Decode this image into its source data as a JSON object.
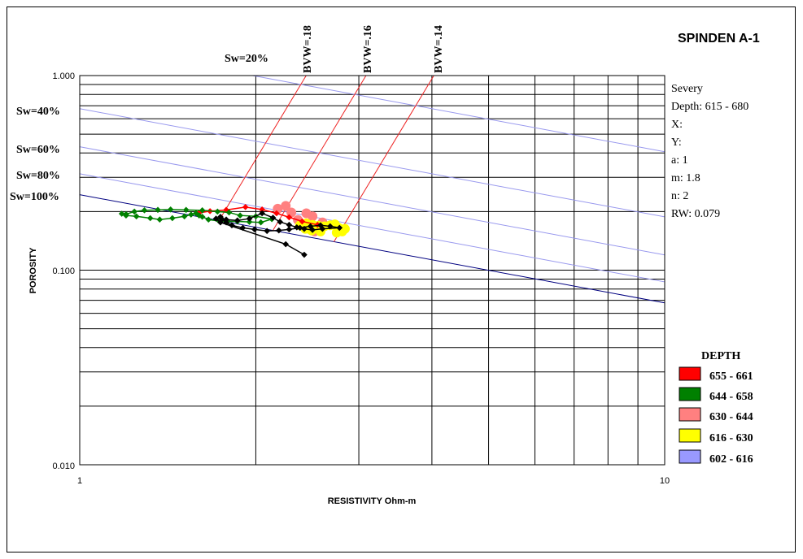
{
  "chart_data": {
    "type": "scatter",
    "title": "SPINDEN A-1",
    "xlabel": "RESISTIVITY Ohm-m",
    "ylabel": "POROSITY",
    "x_scale": "log",
    "y_scale": "log",
    "xlim": [
      1,
      10
    ],
    "ylim": [
      0.01,
      1.0
    ],
    "x_tick_labels": [
      "1",
      "10"
    ],
    "y_tick_labels": [
      "0.010",
      "0.100",
      "1.000"
    ],
    "info": [
      "Severy",
      "Depth: 615 - 680",
      "X:",
      "Y:",
      "a: 1",
      "m: 1.8",
      "n: 2",
      "RW: 0.079"
    ],
    "params": {
      "a": 1,
      "m": 1.8,
      "n": 2,
      "rw": 0.079
    },
    "sw_lines": [
      {
        "label": "Sw=20%",
        "sw": 0.2,
        "color": "#9999ee"
      },
      {
        "label": "Sw=40%",
        "sw": 0.4,
        "color": "#9999ee"
      },
      {
        "label": "Sw=60%",
        "sw": 0.6,
        "color": "#9999ee"
      },
      {
        "label": "Sw=80%",
        "sw": 0.8,
        "color": "#9999ee"
      },
      {
        "label": "Sw=100%",
        "sw": 1.0,
        "color": "#000080"
      }
    ],
    "bvw_lines": [
      {
        "label": "BVW=.18",
        "bvw": 0.18,
        "color": "#ee2222"
      },
      {
        "label": "BVW=.16",
        "bvw": 0.16,
        "color": "#ee2222"
      },
      {
        "label": "BVW=.14",
        "bvw": 0.14,
        "color": "#ee2222"
      }
    ],
    "legend": {
      "title": "DEPTH",
      "position": "right",
      "entries": [
        {
          "label": "655 - 661",
          "color": "#ff0000"
        },
        {
          "label": "644 - 658",
          "color": "#008000"
        },
        {
          "label": "630 - 644",
          "color": "#ff8080"
        },
        {
          "label": "616 - 630",
          "color": "#ffff00"
        },
        {
          "label": "602 - 616",
          "color": "#9999ff"
        }
      ]
    },
    "series": [
      {
        "color": "#ff8080",
        "marker": "circle",
        "points": [
          [
            2.18,
            0.207
          ],
          [
            2.25,
            0.214
          ],
          [
            2.3,
            0.198
          ],
          [
            2.36,
            0.181
          ],
          [
            2.41,
            0.172
          ],
          [
            2.47,
            0.163
          ],
          [
            2.52,
            0.158
          ],
          [
            2.56,
            0.165
          ],
          [
            2.6,
            0.176
          ],
          [
            2.5,
            0.189
          ],
          [
            2.44,
            0.196
          ]
        ]
      },
      {
        "color": "#ffff00",
        "marker": "circle",
        "points": [
          [
            2.38,
            0.17
          ],
          [
            2.44,
            0.174
          ],
          [
            2.5,
            0.171
          ],
          [
            2.56,
            0.169
          ],
          [
            2.62,
            0.168
          ],
          [
            2.68,
            0.17
          ],
          [
            2.73,
            0.172
          ],
          [
            2.77,
            0.165
          ],
          [
            2.81,
            0.158
          ],
          [
            2.84,
            0.163
          ],
          [
            2.75,
            0.156
          ],
          [
            2.58,
            0.158
          ],
          [
            2.49,
            0.16
          ],
          [
            2.43,
            0.163
          ]
        ]
      },
      {
        "color": "#ff0000",
        "marker": "diamond",
        "points": [
          [
            1.6,
            0.197
          ],
          [
            1.67,
            0.201
          ],
          [
            1.78,
            0.204
          ],
          [
            1.92,
            0.211
          ],
          [
            2.05,
            0.205
          ],
          [
            2.17,
            0.196
          ],
          [
            2.28,
            0.187
          ],
          [
            2.4,
            0.178
          ],
          [
            2.55,
            0.171
          ]
        ]
      },
      {
        "color": "#008000",
        "marker": "diamond",
        "points": [
          [
            1.2,
            0.194
          ],
          [
            1.24,
            0.2
          ],
          [
            1.29,
            0.203
          ],
          [
            1.36,
            0.204
          ],
          [
            1.43,
            0.205
          ],
          [
            1.52,
            0.204
          ],
          [
            1.62,
            0.203
          ],
          [
            1.72,
            0.2
          ],
          [
            1.8,
            0.198
          ],
          [
            1.88,
            0.191
          ],
          [
            2.0,
            0.189
          ],
          [
            2.13,
            0.183
          ],
          [
            2.04,
            0.176
          ],
          [
            1.95,
            0.177
          ],
          [
            1.86,
            0.178
          ],
          [
            1.79,
            0.178
          ],
          [
            1.73,
            0.179
          ],
          [
            1.66,
            0.182
          ],
          [
            1.62,
            0.188
          ],
          [
            1.6,
            0.191
          ],
          [
            1.58,
            0.196
          ],
          [
            1.55,
            0.193
          ],
          [
            1.51,
            0.189
          ],
          [
            1.44,
            0.185
          ],
          [
            1.37,
            0.182
          ],
          [
            1.32,
            0.185
          ],
          [
            1.25,
            0.189
          ],
          [
            1.2,
            0.191
          ],
          [
            1.18,
            0.195
          ]
        ]
      },
      {
        "color": "#000000",
        "marker": "diamond",
        "points": [
          [
            1.74,
            0.188
          ],
          [
            1.75,
            0.183
          ],
          [
            1.78,
            0.176
          ],
          [
            1.82,
            0.17
          ],
          [
            1.9,
            0.165
          ],
          [
            1.99,
            0.162
          ],
          [
            2.09,
            0.159
          ],
          [
            2.19,
            0.16
          ],
          [
            2.28,
            0.162
          ],
          [
            2.38,
            0.165
          ],
          [
            2.48,
            0.168
          ],
          [
            2.58,
            0.17
          ],
          [
            2.68,
            0.168
          ],
          [
            2.78,
            0.165
          ],
          [
            2.6,
            0.163
          ],
          [
            2.5,
            0.161
          ],
          [
            2.42,
            0.163
          ],
          [
            2.35,
            0.166
          ],
          [
            2.28,
            0.171
          ],
          [
            2.2,
            0.177
          ],
          [
            2.14,
            0.186
          ],
          [
            2.05,
            0.196
          ],
          [
            1.95,
            0.184
          ],
          [
            1.86,
            0.18
          ],
          [
            1.78,
            0.182
          ],
          [
            1.71,
            0.184
          ],
          [
            1.74,
            0.176
          ],
          [
            2.25,
            0.136
          ],
          [
            2.42,
            0.12
          ]
        ]
      }
    ]
  }
}
